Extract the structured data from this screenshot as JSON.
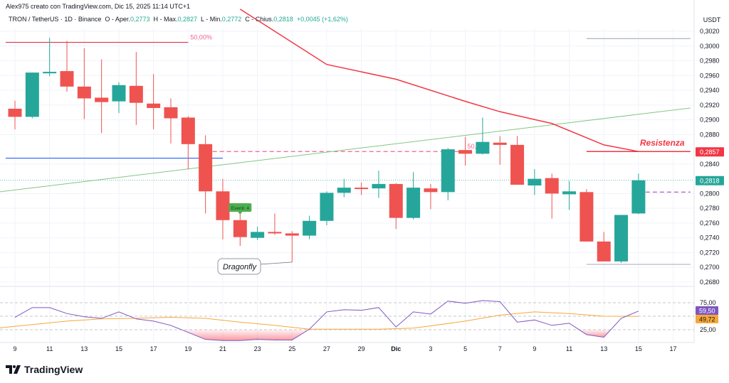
{
  "header": {
    "credit": "Alex975 creato con TradingView.com, Dic 15, 2025 11:14 UTC+1",
    "symbol": "TRON / TetherUS · 1D · Binance",
    "open_label": "O - Aper.",
    "open": "0,2773",
    "high_label": "H - Max.",
    "high": "0,2827",
    "low_label": "L - Min.",
    "low": "0,2772",
    "close_label": "C - Chius.",
    "close": "0,2818",
    "change": "+0,0045 (+1,62%)"
  },
  "logo": {
    "text": "TradingView",
    "icon": "tradingview-logo-icon"
  },
  "colors": {
    "up": "#26a69a",
    "down": "#ef5350",
    "rsi": "#7e57c2",
    "rsi_ma": "#f7a738",
    "resistance": "#f23645",
    "fib": "#e0314b",
    "support_blue": "#2962ff",
    "trend_green": "#81c784"
  },
  "chart_data": {
    "type": "candlestick",
    "currency_label": "USDT",
    "ylim": [
      0.266,
      0.3035
    ],
    "price_ticks": [
      "0,3020",
      "0,3000",
      "0,2980",
      "0,2960",
      "0,2940",
      "0,2920",
      "0,2900",
      "0,2880",
      "0,2840",
      "0,2800",
      "0,2780",
      "0,2760",
      "0,2740",
      "0,2720",
      "0,2700",
      "0,2680"
    ],
    "price_tick_values": [
      0.302,
      0.3,
      0.298,
      0.296,
      0.294,
      0.292,
      0.29,
      0.288,
      0.284,
      0.28,
      0.278,
      0.276,
      0.274,
      0.272,
      0.27,
      0.268
    ],
    "x_labels": [
      "9",
      "11",
      "13",
      "15",
      "17",
      "19",
      "21",
      "23",
      "25",
      "27",
      "29",
      "Dic",
      "3",
      "5",
      "7",
      "9",
      "11",
      "13",
      "15",
      "17"
    ],
    "x_label_dates": [
      "2025-11-09",
      "2025-11-11",
      "2025-11-13",
      "2025-11-15",
      "2025-11-17",
      "2025-11-19",
      "2025-11-21",
      "2025-11-23",
      "2025-11-25",
      "2025-11-27",
      "2025-11-29",
      "2025-12-01",
      "2025-12-03",
      "2025-12-05",
      "2025-12-07",
      "2025-12-09",
      "2025-12-11",
      "2025-12-13",
      "2025-12-15",
      "2025-12-17"
    ],
    "candles": [
      {
        "date": "2025-11-09",
        "o": 0.2915,
        "h": 0.2926,
        "l": 0.2887,
        "c": 0.2904
      },
      {
        "date": "2025-11-10",
        "o": 0.2904,
        "h": 0.2964,
        "l": 0.2902,
        "c": 0.2964
      },
      {
        "date": "2025-11-11",
        "o": 0.2963,
        "h": 0.3011,
        "l": 0.2959,
        "c": 0.2965
      },
      {
        "date": "2025-11-12",
        "o": 0.2966,
        "h": 0.3007,
        "l": 0.2938,
        "c": 0.2945
      },
      {
        "date": "2025-11-13",
        "o": 0.2945,
        "h": 0.2997,
        "l": 0.2901,
        "c": 0.2929
      },
      {
        "date": "2025-11-14",
        "o": 0.293,
        "h": 0.2982,
        "l": 0.2882,
        "c": 0.2924
      },
      {
        "date": "2025-11-15",
        "o": 0.2925,
        "h": 0.2951,
        "l": 0.2909,
        "c": 0.2947
      },
      {
        "date": "2025-11-16",
        "o": 0.2946,
        "h": 0.2992,
        "l": 0.2893,
        "c": 0.2923
      },
      {
        "date": "2025-11-17",
        "o": 0.2922,
        "h": 0.2962,
        "l": 0.2887,
        "c": 0.2916
      },
      {
        "date": "2025-11-18",
        "o": 0.2917,
        "h": 0.2929,
        "l": 0.2868,
        "c": 0.2902
      },
      {
        "date": "2025-11-19",
        "o": 0.2903,
        "h": 0.2905,
        "l": 0.2833,
        "c": 0.2867
      },
      {
        "date": "2025-11-20",
        "o": 0.2867,
        "h": 0.2879,
        "l": 0.2773,
        "c": 0.2803
      },
      {
        "date": "2025-11-21",
        "o": 0.2803,
        "h": 0.282,
        "l": 0.2738,
        "c": 0.2764
      },
      {
        "date": "2025-11-22",
        "o": 0.2764,
        "h": 0.2772,
        "l": 0.2729,
        "c": 0.2741
      },
      {
        "date": "2025-11-23",
        "o": 0.274,
        "h": 0.2755,
        "l": 0.2737,
        "c": 0.2748
      },
      {
        "date": "2025-11-24",
        "o": 0.2748,
        "h": 0.2773,
        "l": 0.2744,
        "c": 0.2746
      },
      {
        "date": "2025-11-25",
        "o": 0.2746,
        "h": 0.2749,
        "l": 0.2707,
        "c": 0.2743
      },
      {
        "date": "2025-11-26",
        "o": 0.2743,
        "h": 0.277,
        "l": 0.2738,
        "c": 0.2763
      },
      {
        "date": "2025-11-27",
        "o": 0.2763,
        "h": 0.2803,
        "l": 0.2757,
        "c": 0.2801
      },
      {
        "date": "2025-11-28",
        "o": 0.2801,
        "h": 0.282,
        "l": 0.2795,
        "c": 0.2808
      },
      {
        "date": "2025-11-29",
        "o": 0.2808,
        "h": 0.2815,
        "l": 0.2798,
        "c": 0.2807
      },
      {
        "date": "2025-11-30",
        "o": 0.2807,
        "h": 0.2831,
        "l": 0.2794,
        "c": 0.2813
      },
      {
        "date": "2025-12-01",
        "o": 0.2813,
        "h": 0.2814,
        "l": 0.2752,
        "c": 0.2767
      },
      {
        "date": "2025-12-02",
        "o": 0.2767,
        "h": 0.2829,
        "l": 0.2765,
        "c": 0.2808
      },
      {
        "date": "2025-12-03",
        "o": 0.2807,
        "h": 0.2813,
        "l": 0.2779,
        "c": 0.2802
      },
      {
        "date": "2025-12-04",
        "o": 0.2802,
        "h": 0.2862,
        "l": 0.2791,
        "c": 0.286
      },
      {
        "date": "2025-12-05",
        "o": 0.2859,
        "h": 0.2877,
        "l": 0.2838,
        "c": 0.2854
      },
      {
        "date": "2025-12-06",
        "o": 0.2854,
        "h": 0.2903,
        "l": 0.2853,
        "c": 0.287
      },
      {
        "date": "2025-12-07",
        "o": 0.2869,
        "h": 0.2878,
        "l": 0.2839,
        "c": 0.2866
      },
      {
        "date": "2025-12-08",
        "o": 0.2866,
        "h": 0.2878,
        "l": 0.2812,
        "c": 0.2812
      },
      {
        "date": "2025-12-09",
        "o": 0.2811,
        "h": 0.2833,
        "l": 0.2798,
        "c": 0.282
      },
      {
        "date": "2025-12-10",
        "o": 0.2821,
        "h": 0.2827,
        "l": 0.2766,
        "c": 0.28
      },
      {
        "date": "2025-12-11",
        "o": 0.2799,
        "h": 0.2817,
        "l": 0.2778,
        "c": 0.2803
      },
      {
        "date": "2025-12-12",
        "o": 0.2802,
        "h": 0.2806,
        "l": 0.2735,
        "c": 0.2735
      },
      {
        "date": "2025-12-13",
        "o": 0.2735,
        "h": 0.2748,
        "l": 0.2708,
        "c": 0.2708
      },
      {
        "date": "2025-12-14",
        "o": 0.2708,
        "h": 0.2771,
        "l": 0.2706,
        "c": 0.2771
      },
      {
        "date": "2025-12-15",
        "o": 0.2773,
        "h": 0.2827,
        "l": 0.2772,
        "c": 0.2818
      }
    ],
    "moving_average": [
      {
        "date": "2025-11-22",
        "v": 0.305
      },
      {
        "date": "2025-11-27",
        "v": 0.2975
      },
      {
        "date": "2025-12-01",
        "v": 0.2955
      },
      {
        "date": "2025-12-05",
        "v": 0.2925
      },
      {
        "date": "2025-12-07",
        "v": 0.2911
      },
      {
        "date": "2025-12-10",
        "v": 0.2895
      },
      {
        "date": "2025-12-13",
        "v": 0.2866
      },
      {
        "date": "2025-12-15",
        "v": 0.2857
      }
    ],
    "trendline": {
      "from": {
        "date": "2025-11-08",
        "v": 0.2802
      },
      "to": {
        "date": "2025-12-18",
        "v": 0.2916
      }
    },
    "levels": [
      {
        "name": "fib-50-top",
        "price": 0.3005,
        "from": "2025-11-08",
        "to": "2025-11-19",
        "label": "50,00%",
        "style": "solid",
        "color": "#e0314b"
      },
      {
        "name": "blue-support",
        "price": 0.2848,
        "from": "2025-11-08",
        "to": "2025-11-21",
        "label": "",
        "style": "solid",
        "color": "#2962ff"
      },
      {
        "name": "fib-50-dashed",
        "price": 0.2857,
        "from": "2025-11-20",
        "to": "2025-12-05",
        "label": "50,00%",
        "style": "dashed",
        "color": "#f06292"
      },
      {
        "name": "resistance",
        "price": 0.2857,
        "from": "2025-12-12",
        "to": "2025-12-18",
        "label": "Resistenza",
        "style": "solid",
        "color": "#f23645"
      },
      {
        "name": "purple-level",
        "price": 0.2802,
        "from": "2025-12-15",
        "to": "2025-12-18",
        "label": "",
        "style": "dashed",
        "color": "#ab47bc"
      },
      {
        "name": "low-range",
        "price": 0.2704,
        "from": "2025-12-12",
        "to": "2025-12-18",
        "label": "",
        "style": "solid",
        "color": "#b2b5be"
      },
      {
        "name": "high-range",
        "price": 0.301,
        "from": "2025-12-12",
        "to": "2025-12-18",
        "label": "",
        "style": "solid",
        "color": "#b2b5be"
      }
    ],
    "price_badges": [
      {
        "price": 0.2857,
        "label": "0,2857",
        "color": "#f23645"
      },
      {
        "price": 0.2818,
        "label": "0,2818",
        "color": "#26a69a"
      }
    ],
    "annotations": {
      "dragonfly": {
        "text": "Dragonfly",
        "date": "2025-11-25",
        "price": 0.2707
      },
      "events": {
        "text": "Eventi: 4",
        "date": "2025-11-22",
        "price": 0.2775
      }
    },
    "rsi": {
      "ticks": [
        "75,00",
        "25,00"
      ],
      "tick_values": [
        75,
        25
      ],
      "badges": [
        {
          "label": "59,50",
          "value": 59.5,
          "color": "#7e57c2"
        },
        {
          "label": "49,72",
          "value": 49.72,
          "color": "#f7a738"
        }
      ],
      "values": [
        48,
        66,
        66,
        55,
        49,
        46,
        58,
        45,
        41,
        33,
        20,
        7,
        5,
        5,
        7,
        6,
        6,
        26,
        58,
        62,
        61,
        66,
        30,
        58,
        54,
        78,
        74,
        79,
        77,
        39,
        43,
        33,
        37,
        16,
        11,
        46,
        59.5
      ],
      "ma": [
        {
          "date": "2025-11-08",
          "v": 28
        },
        {
          "date": "2025-11-12",
          "v": 41
        },
        {
          "date": "2025-11-14",
          "v": 45
        },
        {
          "date": "2025-11-16",
          "v": 46
        },
        {
          "date": "2025-11-18",
          "v": 48
        },
        {
          "date": "2025-11-20",
          "v": 46
        },
        {
          "date": "2025-11-22",
          "v": 39
        },
        {
          "date": "2025-11-24",
          "v": 33
        },
        {
          "date": "2025-11-26",
          "v": 26
        },
        {
          "date": "2025-11-30",
          "v": 26
        },
        {
          "date": "2025-12-02",
          "v": 28
        },
        {
          "date": "2025-12-03",
          "v": 32
        },
        {
          "date": "2025-12-05",
          "v": 41
        },
        {
          "date": "2025-12-07",
          "v": 52
        },
        {
          "date": "2025-12-09",
          "v": 58
        },
        {
          "date": "2025-12-11",
          "v": 55
        },
        {
          "date": "2025-12-13",
          "v": 50
        },
        {
          "date": "2025-12-15",
          "v": 49.72
        }
      ]
    }
  }
}
